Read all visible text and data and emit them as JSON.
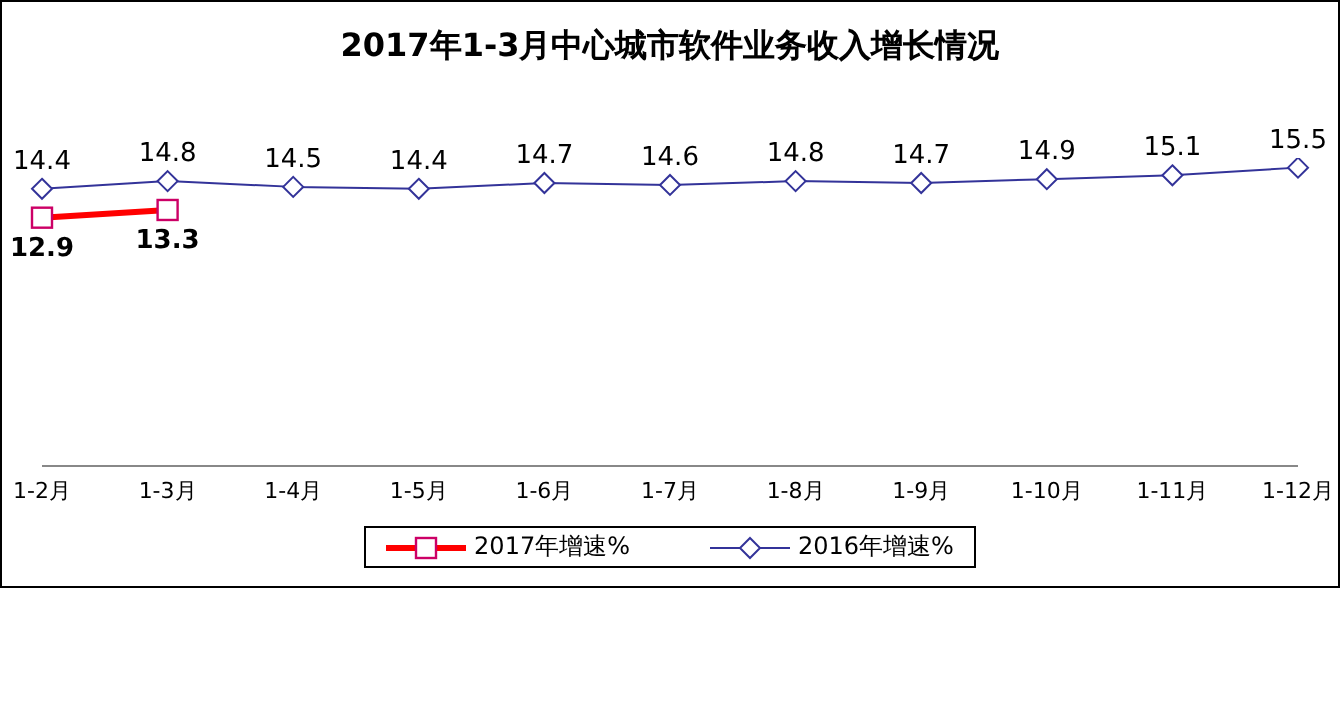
{
  "chart_data": {
    "type": "line",
    "title": "2017年1-3月中心城市软件业务收入增长情况",
    "categories": [
      "1-2月",
      "1-3月",
      "1-4月",
      "1-5月",
      "1-6月",
      "1-7月",
      "1-8月",
      "1-9月",
      "1-10月",
      "1-11月",
      "1-12月"
    ],
    "series": [
      {
        "name": "2017年增速%",
        "color": "#ff0000",
        "marker": "square",
        "values": [
          12.9,
          13.3,
          null,
          null,
          null,
          null,
          null,
          null,
          null,
          null,
          null
        ]
      },
      {
        "name": "2016年增速%",
        "color": "#333399",
        "marker": "diamond",
        "values": [
          14.4,
          14.8,
          14.5,
          14.4,
          14.7,
          14.6,
          14.8,
          14.7,
          14.9,
          15.1,
          15.5
        ]
      }
    ],
    "data_labels": true,
    "legend": "bottom",
    "line_style": "solid"
  }
}
